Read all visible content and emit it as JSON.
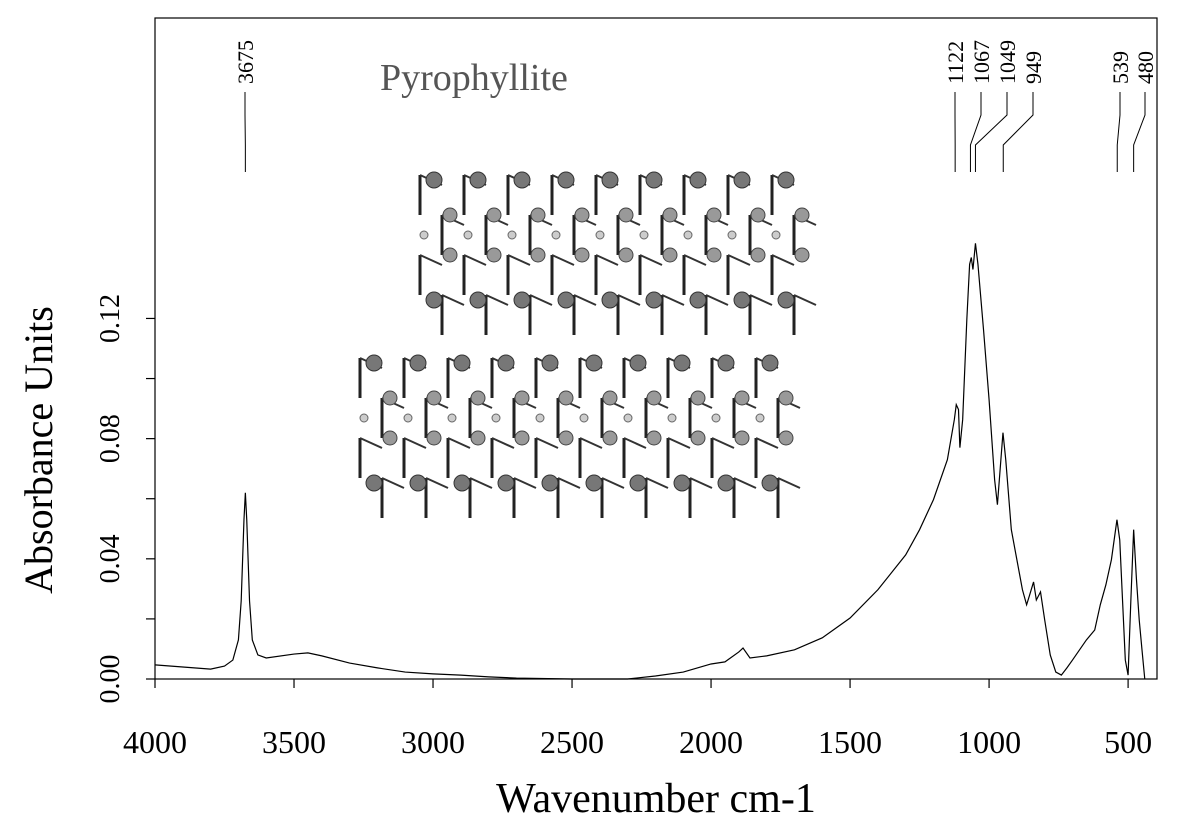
{
  "chart_data": {
    "type": "line",
    "annotation": "Pyrophyllite",
    "x_label": "Wavenumber cm-1",
    "y_label": "Absorbance Units",
    "xlim": [
      4000,
      396
    ],
    "ylim": [
      0,
      0.22
    ],
    "xticks": [
      4000,
      3500,
      3000,
      2500,
      2000,
      1500,
      1000,
      500
    ],
    "yticks": [
      {
        "value": 0,
        "label": "0.00"
      },
      {
        "value": 0.04,
        "label": "0.04"
      },
      {
        "value": 0.08,
        "label": "0.08"
      },
      {
        "value": 0.12,
        "label": "0.12"
      }
    ],
    "yminorticks": [
      0.02,
      0.06,
      0.1
    ],
    "peak_labels": [
      3675,
      1122,
      1067,
      1049,
      949,
      539,
      480
    ],
    "series": [
      {
        "color": "#000000",
        "x": [
          4000,
          3900,
          3800,
          3750,
          3720,
          3700,
          3690,
          3680,
          3675,
          3670,
          3660,
          3650,
          3630,
          3600,
          3500,
          3450,
          3400,
          3300,
          3200,
          3100,
          3000,
          2900,
          2800,
          2700,
          2500,
          2300,
          2200,
          2100,
          2000,
          1950,
          1900,
          1885,
          1860,
          1800,
          1700,
          1600,
          1500,
          1400,
          1300,
          1250,
          1200,
          1150,
          1125,
          1118,
          1110,
          1105,
          1095,
          1080,
          1070,
          1064,
          1058,
          1049,
          1040,
          1020,
          1000,
          980,
          970,
          960,
          950,
          940,
          920,
          900,
          880,
          865,
          855,
          840,
          830,
          815,
          800,
          780,
          760,
          740,
          720,
          700,
          650,
          620,
          600,
          580,
          560,
          540,
          530,
          520,
          510,
          500,
          490,
          480,
          470,
          460,
          450,
          440
        ],
        "values": [
          0.0047,
          0.004,
          0.0033,
          0.0043,
          0.0063,
          0.013,
          0.026,
          0.053,
          0.062,
          0.053,
          0.026,
          0.013,
          0.008,
          0.007,
          0.0083,
          0.0087,
          0.0077,
          0.0053,
          0.0037,
          0.0023,
          0.0017,
          0.0013,
          0.0007,
          0.0003,
          0,
          0,
          0.001,
          0.0023,
          0.005,
          0.0057,
          0.009,
          0.0103,
          0.007,
          0.0077,
          0.0097,
          0.0137,
          0.0203,
          0.0297,
          0.0413,
          0.0497,
          0.0597,
          0.073,
          0.0863,
          0.0913,
          0.0897,
          0.077,
          0.0863,
          0.1197,
          0.138,
          0.1403,
          0.1363,
          0.145,
          0.138,
          0.1163,
          0.093,
          0.0663,
          0.058,
          0.07,
          0.082,
          0.073,
          0.0497,
          0.0397,
          0.0297,
          0.0247,
          0.0277,
          0.0323,
          0.0263,
          0.029,
          0.0197,
          0.008,
          0.0023,
          0.0013,
          0.0037,
          0.0063,
          0.013,
          0.0163,
          0.0247,
          0.0313,
          0.0397,
          0.053,
          0.0463,
          0.0263,
          0.0063,
          0.0013,
          0.0263,
          0.0497,
          0.0333,
          0.0197,
          0.0097,
          0
        ]
      }
    ]
  }
}
